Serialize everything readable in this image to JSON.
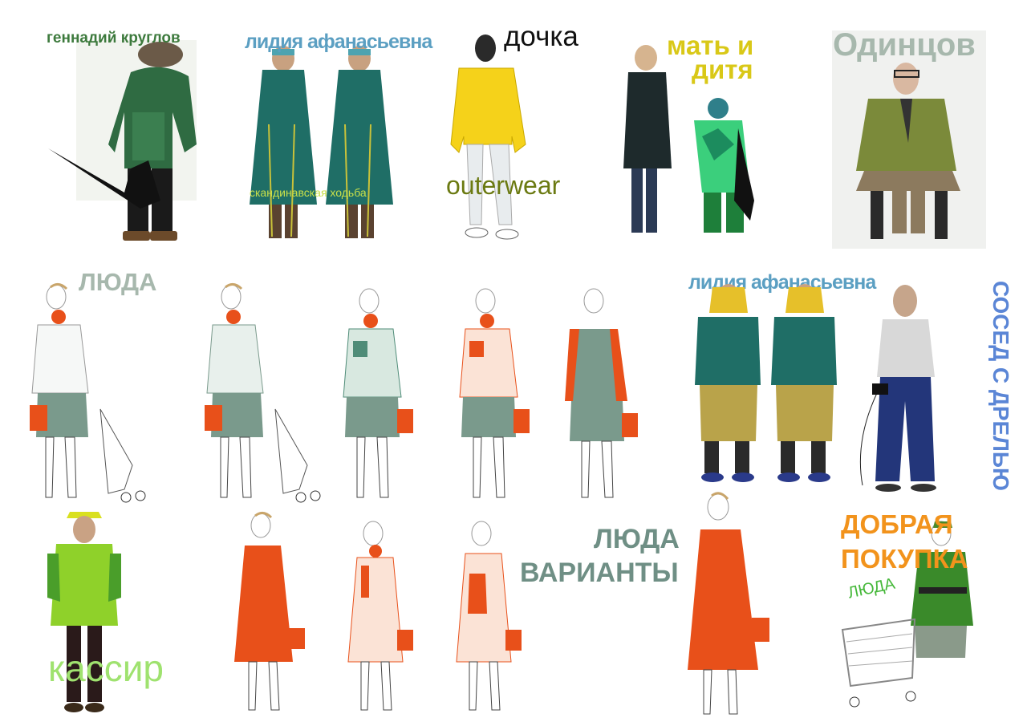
{
  "labels": {
    "gennadiy": "геннадий круглов",
    "lidia_top": "лидия афанасьевна",
    "nordic": "скандинавская ходьба",
    "dochka": "дочка",
    "outerwear": "outerwear",
    "mat_line1": "мать и",
    "mat_line2": "дитя",
    "odintsov": "Одинцов",
    "lyuda_top": "ЛЮДА",
    "lidia_mid": "лидия афанасьевна",
    "sosed": "СОСЕД С ДРЕЛЬЮ",
    "kassir": "кассир",
    "lyuda_var_line1": "ЛЮДА",
    "lyuda_var_line2": "ВАРИАНТЫ",
    "dobraya_line1": "ДОБРАЯ",
    "dobraya_line2": "ПОКУПКА",
    "lyuda_cart": "ЛЮДА"
  },
  "colors": {
    "green_dark": "#3d7a3d",
    "teal_blue": "#5b9fc2",
    "olive": "#6b7a12",
    "yellow": "#d9c817",
    "grey_green": "#a7b8ad",
    "grey_teal": "#6f8f85",
    "blue": "#5b86d6",
    "light_green": "#9fe26f",
    "orange": "#f2931c",
    "sketch_orange": "#e8501a",
    "sketch_teal": "#4f8c78",
    "sketch_grey": "#7a9a8c"
  }
}
